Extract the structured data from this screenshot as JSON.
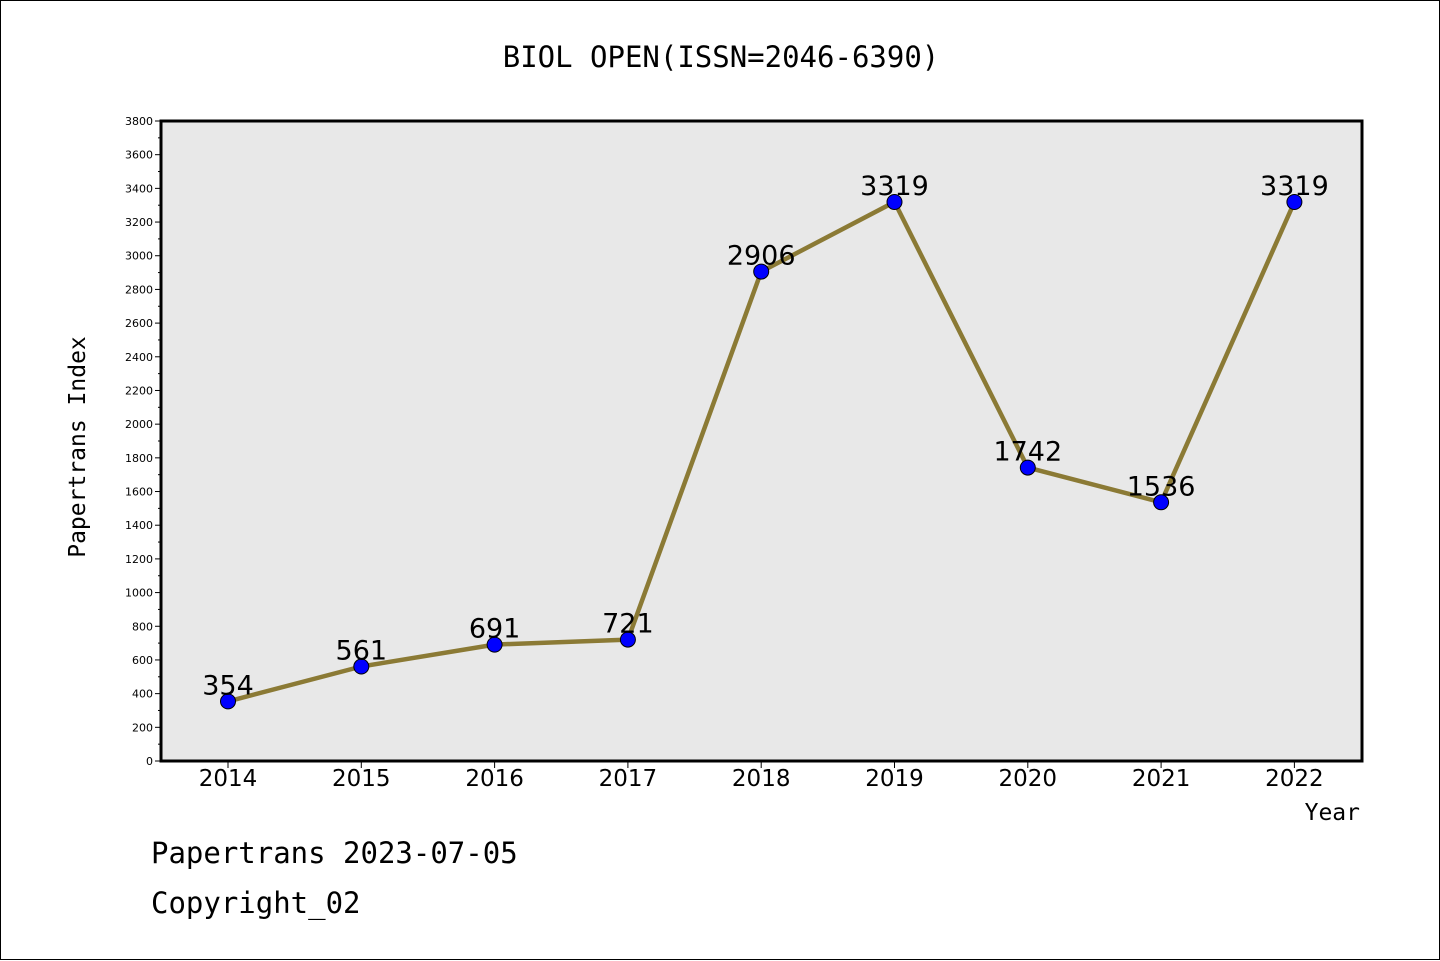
{
  "chart_data": {
    "type": "line",
    "title": "BIOL OPEN(ISSN=2046-6390)",
    "xlabel": "Year",
    "ylabel": "Papertrans Index",
    "categories": [
      "2014",
      "2015",
      "2016",
      "2017",
      "2018",
      "2019",
      "2020",
      "2021",
      "2022"
    ],
    "series": [
      {
        "values": [
          354,
          561,
          691,
          721,
          2906,
          3319,
          1742,
          1536,
          3319
        ],
        "line_color": "#8b7a35",
        "marker_color": "#0000ff"
      }
    ],
    "ylim": [
      0,
      3800
    ],
    "yticks": [
      0,
      200,
      400,
      600,
      800,
      1000,
      1200,
      1400,
      1600,
      1800,
      2000,
      2200,
      2400,
      2600,
      2800,
      3000,
      3200,
      3400,
      3600,
      3800
    ],
    "grid": false,
    "legend": "none",
    "plot_background": "#e8e8e8"
  },
  "footer": {
    "date_line": "Papertrans 2023-07-05",
    "copyright": "Copyright_02"
  }
}
